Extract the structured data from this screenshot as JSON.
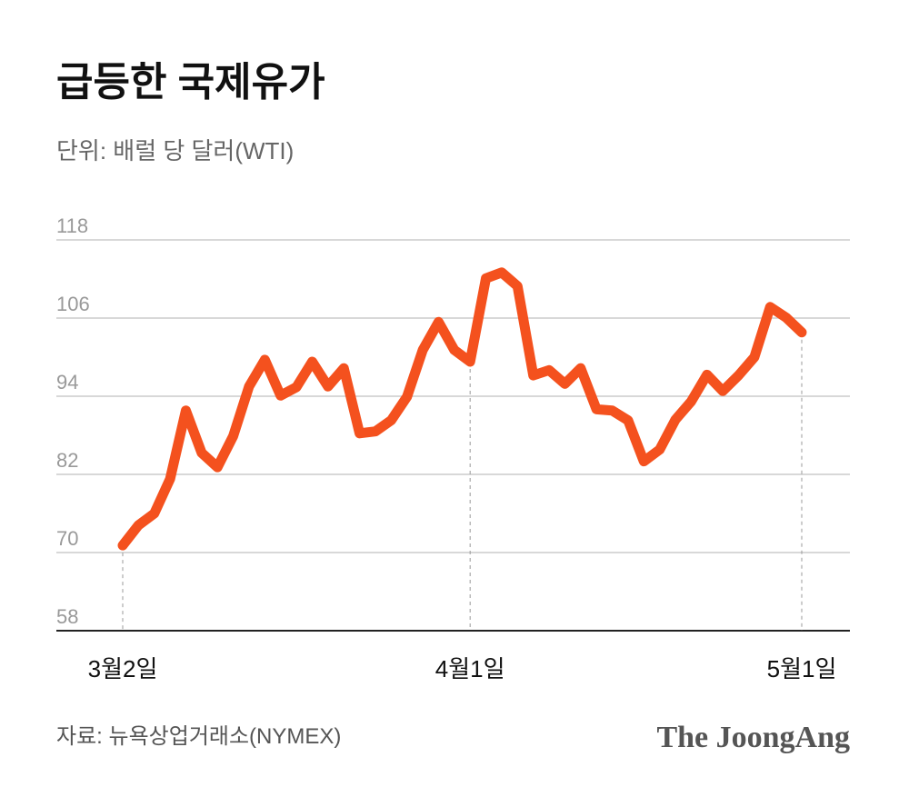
{
  "chart_data": {
    "type": "line",
    "title": "급등한 국제유가",
    "subtitle": "단위: 배럴 당 달러(WTI)",
    "source": "자료: 뉴욕상업거래소(NYMEX)",
    "brand": "The JoongAng",
    "categories": [
      "3월2일",
      null,
      null,
      null,
      null,
      null,
      null,
      null,
      null,
      null,
      null,
      null,
      null,
      null,
      null,
      null,
      null,
      null,
      null,
      null,
      null,
      null,
      "4월1일",
      null,
      null,
      null,
      null,
      null,
      null,
      null,
      null,
      null,
      null,
      null,
      null,
      null,
      null,
      null,
      null,
      null,
      null,
      null,
      null,
      "5월1일"
    ],
    "series": [
      {
        "name": "WTI",
        "color": "#f4511e",
        "values": [
          71.1,
          74.2,
          76.0,
          81.3,
          91.8,
          85.3,
          83.1,
          87.9,
          95.5,
          99.6,
          94.1,
          95.4,
          99.3,
          95.5,
          98.3,
          88.3,
          88.6,
          90.3,
          93.9,
          101.1,
          105.4,
          101.1,
          99.3,
          112.1,
          113.0,
          110.9,
          97.2,
          98.0,
          95.9,
          98.3,
          92.0,
          91.8,
          90.3,
          84.0,
          85.8,
          90.4,
          93.2,
          97.3,
          94.8,
          97.2,
          100.0,
          107.7,
          106.1,
          103.8
        ]
      }
    ],
    "ylim": [
      58,
      118
    ],
    "yticks": [
      58,
      70,
      82,
      94,
      106,
      118
    ],
    "grid": true
  }
}
